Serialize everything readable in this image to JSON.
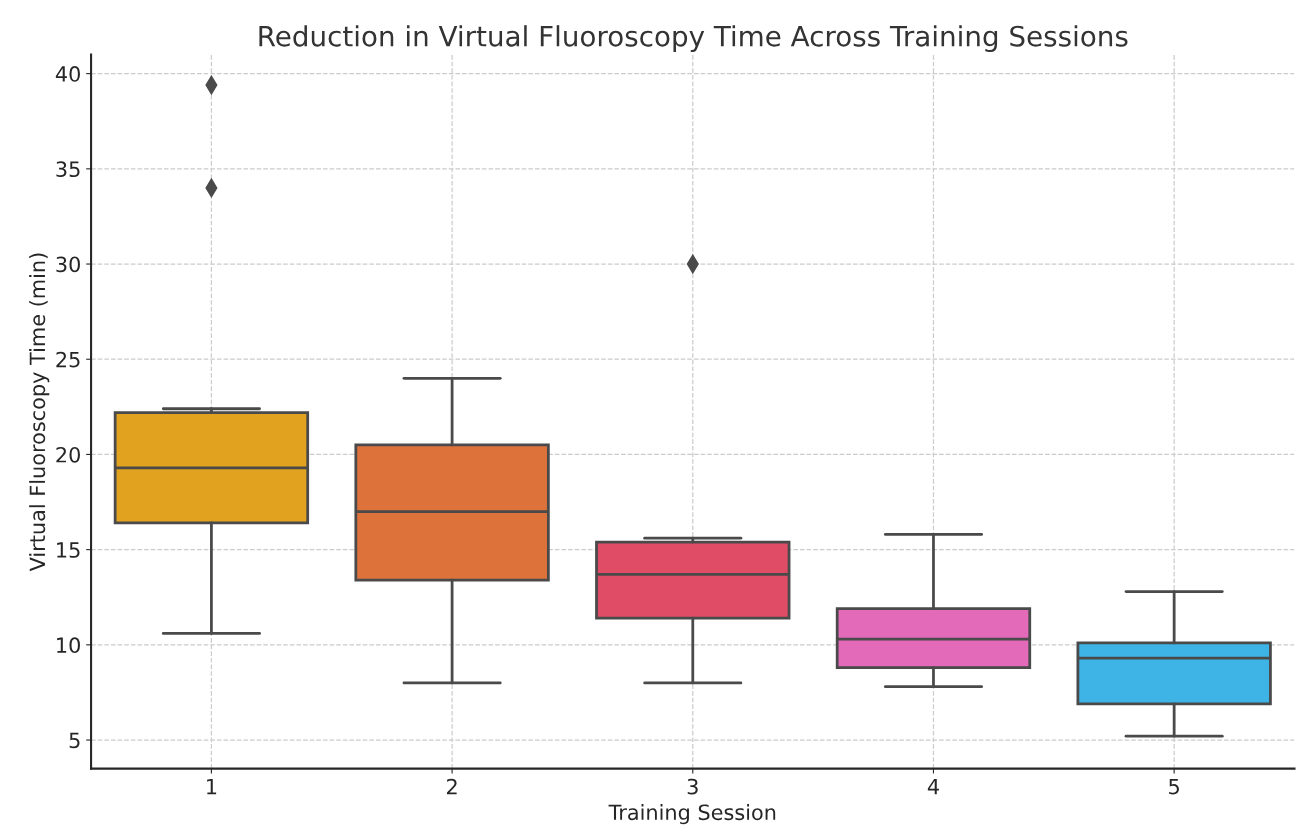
{
  "chart_data": {
    "type": "box",
    "title": "Reduction in Virtual Fluoroscopy Time Across Training Sessions",
    "xlabel": "Training Session",
    "ylabel": "Virtual Fluoroscopy Time (min)",
    "categories": [
      "1",
      "2",
      "3",
      "4",
      "5"
    ],
    "boxes": [
      {
        "low": 10.6,
        "q1": 16.4,
        "median": 19.3,
        "q3": 22.2,
        "high": 22.4,
        "outliers": [
          34.0,
          39.4
        ]
      },
      {
        "low": 8.0,
        "q1": 13.4,
        "median": 17.0,
        "q3": 20.5,
        "high": 24.0
      },
      {
        "low": 8.0,
        "q1": 11.4,
        "median": 13.7,
        "q3": 15.4,
        "high": 15.6,
        "outliers": [
          30.0
        ]
      },
      {
        "low": 7.8,
        "q1": 8.8,
        "median": 10.3,
        "q3": 11.9,
        "high": 15.8
      },
      {
        "low": 5.2,
        "q1": 6.9,
        "median": 9.3,
        "q3": 10.1,
        "high": 12.8
      }
    ],
    "colors": [
      "#e0a21f",
      "#dd733b",
      "#e04b66",
      "#e26ab8",
      "#3db4e5"
    ],
    "ylim": [
      3.5,
      41
    ],
    "yticks": [
      5,
      10,
      15,
      20,
      25,
      30,
      35,
      40
    ],
    "grid": true,
    "marker": "diamond"
  }
}
